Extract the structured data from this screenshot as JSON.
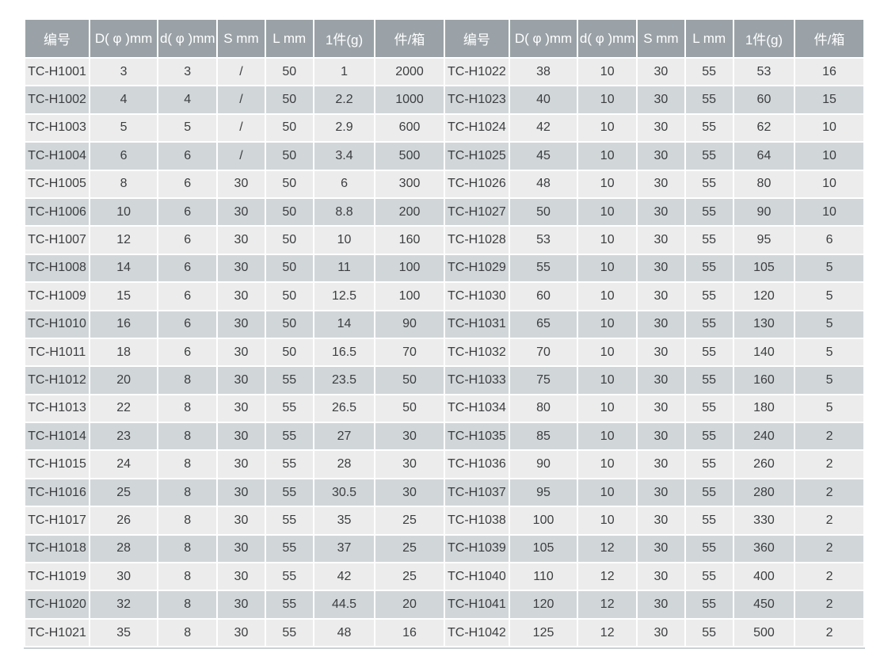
{
  "colors": {
    "page_background": "#ffffff",
    "header_background": "#9aa2a7",
    "header_text": "#ffffff",
    "row_light": "#ececec",
    "row_dark": "#d1d6d9",
    "body_text": "#3c3e40",
    "table_bottom_line": "#ccd1d4"
  },
  "table": {
    "headers": [
      "编号",
      "D( φ )mm",
      "d( φ )mm",
      "S mm",
      "L mm",
      "1件(g)",
      "件/箱"
    ],
    "left_rows": [
      [
        "TC-H1001",
        "3",
        "3",
        "/",
        "50",
        "1",
        "2000"
      ],
      [
        "TC-H1002",
        "4",
        "4",
        "/",
        "50",
        "2.2",
        "1000"
      ],
      [
        "TC-H1003",
        "5",
        "5",
        "/",
        "50",
        "2.9",
        "600"
      ],
      [
        "TC-H1004",
        "6",
        "6",
        "/",
        "50",
        "3.4",
        "500"
      ],
      [
        "TC-H1005",
        "8",
        "6",
        "30",
        "50",
        "6",
        "300"
      ],
      [
        "TC-H1006",
        "10",
        "6",
        "30",
        "50",
        "8.8",
        "200"
      ],
      [
        "TC-H1007",
        "12",
        "6",
        "30",
        "50",
        "10",
        "160"
      ],
      [
        "TC-H1008",
        "14",
        "6",
        "30",
        "50",
        "11",
        "100"
      ],
      [
        "TC-H1009",
        "15",
        "6",
        "30",
        "50",
        "12.5",
        "100"
      ],
      [
        "TC-H1010",
        "16",
        "6",
        "30",
        "50",
        "14",
        "90"
      ],
      [
        "TC-H1011",
        "18",
        "6",
        "30",
        "50",
        "16.5",
        "70"
      ],
      [
        "TC-H1012",
        "20",
        "8",
        "30",
        "55",
        "23.5",
        "50"
      ],
      [
        "TC-H1013",
        "22",
        "8",
        "30",
        "55",
        "26.5",
        "50"
      ],
      [
        "TC-H1014",
        "23",
        "8",
        "30",
        "55",
        "27",
        "30"
      ],
      [
        "TC-H1015",
        "24",
        "8",
        "30",
        "55",
        "28",
        "30"
      ],
      [
        "TC-H1016",
        "25",
        "8",
        "30",
        "55",
        "30.5",
        "30"
      ],
      [
        "TC-H1017",
        "26",
        "8",
        "30",
        "55",
        "35",
        "25"
      ],
      [
        "TC-H1018",
        "28",
        "8",
        "30",
        "55",
        "37",
        "25"
      ],
      [
        "TC-H1019",
        "30",
        "8",
        "30",
        "55",
        "42",
        "25"
      ],
      [
        "TC-H1020",
        "32",
        "8",
        "30",
        "55",
        "44.5",
        "20"
      ],
      [
        "TC-H1021",
        "35",
        "8",
        "30",
        "55",
        "48",
        "16"
      ]
    ],
    "right_rows": [
      [
        "TC-H1022",
        "38",
        "10",
        "30",
        "55",
        "53",
        "16"
      ],
      [
        "TC-H1023",
        "40",
        "10",
        "30",
        "55",
        "60",
        "15"
      ],
      [
        "TC-H1024",
        "42",
        "10",
        "30",
        "55",
        "62",
        "10"
      ],
      [
        "TC-H1025",
        "45",
        "10",
        "30",
        "55",
        "64",
        "10"
      ],
      [
        "TC-H1026",
        "48",
        "10",
        "30",
        "55",
        "80",
        "10"
      ],
      [
        "TC-H1027",
        "50",
        "10",
        "30",
        "55",
        "90",
        "10"
      ],
      [
        "TC-H1028",
        "53",
        "10",
        "30",
        "55",
        "95",
        "6"
      ],
      [
        "TC-H1029",
        "55",
        "10",
        "30",
        "55",
        "105",
        "5"
      ],
      [
        "TC-H1030",
        "60",
        "10",
        "30",
        "55",
        "120",
        "5"
      ],
      [
        "TC-H1031",
        "65",
        "10",
        "30",
        "55",
        "130",
        "5"
      ],
      [
        "TC-H1032",
        "70",
        "10",
        "30",
        "55",
        "140",
        "5"
      ],
      [
        "TC-H1033",
        "75",
        "10",
        "30",
        "55",
        "160",
        "5"
      ],
      [
        "TC-H1034",
        "80",
        "10",
        "30",
        "55",
        "180",
        "5"
      ],
      [
        "TC-H1035",
        "85",
        "10",
        "30",
        "55",
        "240",
        "2"
      ],
      [
        "TC-H1036",
        "90",
        "10",
        "30",
        "55",
        "260",
        "2"
      ],
      [
        "TC-H1037",
        "95",
        "10",
        "30",
        "55",
        "280",
        "2"
      ],
      [
        "TC-H1038",
        "100",
        "10",
        "30",
        "55",
        "330",
        "2"
      ],
      [
        "TC-H1039",
        "105",
        "12",
        "30",
        "55",
        "360",
        "2"
      ],
      [
        "TC-H1040",
        "110",
        "12",
        "30",
        "55",
        "400",
        "2"
      ],
      [
        "TC-H1041",
        "120",
        "12",
        "30",
        "55",
        "450",
        "2"
      ],
      [
        "TC-H1042",
        "125",
        "12",
        "30",
        "55",
        "500",
        "2"
      ]
    ]
  }
}
